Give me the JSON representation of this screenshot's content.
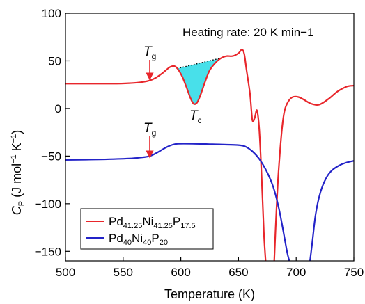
{
  "chart_data": {
    "type": "line",
    "title": "",
    "xlabel": "Temperature (K)",
    "ylabel": "C_P (J mol−1 K−1)",
    "ylabel_parts": {
      "sym": "C",
      "sub": "P",
      "unit_a": " (J mol",
      "exp1": "−1",
      "unit_b": " K",
      "exp2": "−1",
      "unit_c": ")"
    },
    "xlim": [
      500,
      750
    ],
    "ylim": [
      -160,
      100
    ],
    "xticks": [
      500,
      550,
      600,
      650,
      700,
      750
    ],
    "yticks": [
      -150,
      -100,
      -50,
      0,
      50,
      100
    ],
    "grid": false,
    "annotations": {
      "heating_rate": "Heating rate: 20 K min−1",
      "tg_sym": "T",
      "tg_sub": "g",
      "tc_sym": "T",
      "tc_sub": "c"
    },
    "markers": [
      {
        "label": "Tg",
        "series": 0,
        "x": 573,
        "y": 28
      },
      {
        "label": "Tg",
        "series": 1,
        "x": 573,
        "y": -51
      },
      {
        "label": "Tc",
        "series": 0,
        "x": 612,
        "y": 5
      }
    ],
    "series": [
      {
        "name": "Pd41.25Ni41.25P17.5",
        "name_parts": [
          [
            "Pd",
            "41.25"
          ],
          [
            "Ni",
            "41.25"
          ],
          [
            "P",
            "17.5"
          ]
        ],
        "color": "#e8262b",
        "points": [
          [
            500,
            26
          ],
          [
            520,
            26
          ],
          [
            540,
            26
          ],
          [
            555,
            26.5
          ],
          [
            565,
            27.5
          ],
          [
            572,
            29
          ],
          [
            578,
            32
          ],
          [
            584,
            37
          ],
          [
            590,
            43
          ],
          [
            594,
            44.5
          ],
          [
            597,
            42
          ],
          [
            601,
            34
          ],
          [
            605,
            22
          ],
          [
            608,
            12
          ],
          [
            611,
            5
          ],
          [
            614,
            6
          ],
          [
            617,
            14
          ],
          [
            621,
            28
          ],
          [
            625,
            40
          ],
          [
            630,
            48
          ],
          [
            635,
            53
          ],
          [
            640,
            55
          ],
          [
            645,
            55
          ],
          [
            650,
            58
          ],
          [
            653,
            62
          ],
          [
            655,
            57
          ],
          [
            657,
            40
          ],
          [
            660,
            15
          ],
          [
            662,
            -12
          ],
          [
            664,
            -10
          ],
          [
            666,
            -2
          ],
          [
            668,
            -22
          ],
          [
            670,
            -70
          ],
          [
            672,
            -130
          ],
          [
            673.5,
            -160
          ]
        ],
        "points_b": [
          [
            681,
            -160
          ],
          [
            682,
            -130
          ],
          [
            684,
            -80
          ],
          [
            686,
            -45
          ],
          [
            688,
            -18
          ],
          [
            690,
            -2
          ],
          [
            693,
            7
          ],
          [
            697,
            12
          ],
          [
            702,
            12
          ],
          [
            707,
            9
          ],
          [
            713,
            5
          ],
          [
            720,
            4
          ],
          [
            728,
            10
          ],
          [
            736,
            18
          ],
          [
            744,
            23
          ],
          [
            750,
            24
          ]
        ]
      },
      {
        "name": "Pd40Ni40P20",
        "name_parts": [
          [
            "Pd",
            "40"
          ],
          [
            "Ni",
            "40"
          ],
          [
            "P",
            "20"
          ]
        ],
        "color": "#2323c8",
        "points": [
          [
            500,
            -54
          ],
          [
            530,
            -53.5
          ],
          [
            555,
            -52.5
          ],
          [
            565,
            -51.5
          ],
          [
            573,
            -50
          ],
          [
            580,
            -46
          ],
          [
            587,
            -41
          ],
          [
            593,
            -38
          ],
          [
            598,
            -37
          ],
          [
            610,
            -37
          ],
          [
            625,
            -37.5
          ],
          [
            640,
            -38
          ],
          [
            650,
            -38.5
          ],
          [
            656,
            -40
          ],
          [
            662,
            -45
          ],
          [
            668,
            -53
          ],
          [
            674,
            -65
          ],
          [
            680,
            -82
          ],
          [
            685,
            -105
          ],
          [
            689,
            -130
          ],
          [
            692,
            -150
          ],
          [
            694,
            -160
          ]
        ],
        "points_b": [
          [
            712,
            -160
          ],
          [
            714,
            -140
          ],
          [
            717,
            -110
          ],
          [
            721,
            -88
          ],
          [
            726,
            -73
          ],
          [
            731,
            -65
          ],
          [
            737,
            -60
          ],
          [
            743,
            -57
          ],
          [
            750,
            -55
          ]
        ]
      }
    ],
    "crystallization_fill": {
      "x_start": 596,
      "x_end": 637,
      "color": "#48e0ea"
    },
    "legend": {
      "position": "bottom-left"
    }
  }
}
